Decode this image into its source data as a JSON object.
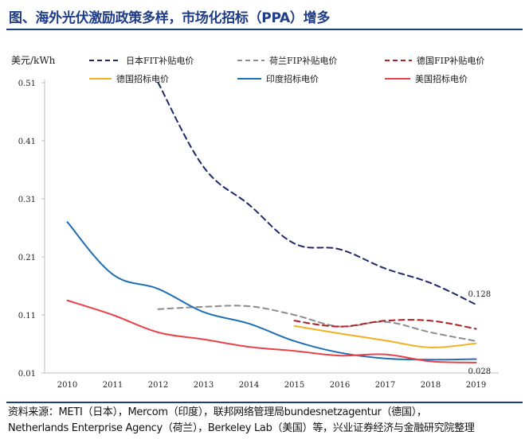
{
  "header": {
    "title": "图、海外光伏激励政策多样，市场化招标（PPA）增多"
  },
  "chart_data": {
    "type": "line",
    "ylabel": "美元/kWh",
    "x": [
      2010,
      2011,
      2012,
      2013,
      2014,
      2015,
      2016,
      2017,
      2018,
      2019
    ],
    "y_ticks": [
      "0.51",
      "0.41",
      "0.31",
      "0.21",
      "0.11",
      "0.01"
    ],
    "ylim": [
      0.01,
      0.51
    ],
    "grid": false,
    "legend_position": "top",
    "series": [
      {
        "name": "日本FIT补贴电价",
        "color": "#1f2a6b",
        "dash": "dashed",
        "points": [
          [
            2012,
            0.51
          ],
          [
            2013,
            0.365
          ],
          [
            2014,
            0.3
          ],
          [
            2015,
            0.233
          ],
          [
            2016,
            0.223
          ],
          [
            2017,
            0.19
          ],
          [
            2018,
            0.165
          ],
          [
            2019,
            0.128
          ]
        ]
      },
      {
        "name": "荷兰FIP补贴电价",
        "color": "#8c8c8c",
        "dash": "dashed",
        "points": [
          [
            2012,
            0.12
          ],
          [
            2013,
            0.124
          ],
          [
            2014,
            0.125
          ],
          [
            2015,
            0.11
          ],
          [
            2016,
            0.09
          ],
          [
            2017,
            0.098
          ],
          [
            2018,
            0.08
          ],
          [
            2019,
            0.065
          ]
        ]
      },
      {
        "name": "德国FIP补贴电价",
        "color": "#b01f24",
        "dash": "dashed",
        "points": [
          [
            2015,
            0.1
          ],
          [
            2016,
            0.09
          ],
          [
            2017,
            0.1
          ],
          [
            2018,
            0.1
          ],
          [
            2019,
            0.086
          ]
        ]
      },
      {
        "name": "德国招标电价",
        "color": "#f2b01e",
        "dash": "solid",
        "points": [
          [
            2015,
            0.091
          ],
          [
            2016,
            0.078
          ],
          [
            2017,
            0.066
          ],
          [
            2018,
            0.054
          ],
          [
            2019,
            0.061
          ]
        ]
      },
      {
        "name": "印度招标电价",
        "color": "#1f6fb5",
        "dash": "solid",
        "points": [
          [
            2010,
            0.27
          ],
          [
            2011,
            0.18
          ],
          [
            2012,
            0.155
          ],
          [
            2013,
            0.115
          ],
          [
            2014,
            0.095
          ],
          [
            2015,
            0.065
          ],
          [
            2016,
            0.045
          ],
          [
            2017,
            0.035
          ],
          [
            2018,
            0.033
          ],
          [
            2019,
            0.034
          ]
        ]
      },
      {
        "name": "美国招标电价",
        "color": "#e8424a",
        "dash": "solid",
        "points": [
          [
            2010,
            0.135
          ],
          [
            2011,
            0.11
          ],
          [
            2012,
            0.08
          ],
          [
            2013,
            0.068
          ],
          [
            2014,
            0.055
          ],
          [
            2015,
            0.048
          ],
          [
            2016,
            0.04
          ],
          [
            2017,
            0.042
          ],
          [
            2018,
            0.03
          ],
          [
            2019,
            0.028
          ]
        ]
      }
    ],
    "annotations": [
      {
        "text": "0.128",
        "x": 2019,
        "y": 0.128
      },
      {
        "text": "0.028",
        "x": 2019,
        "y": 0.028
      }
    ]
  },
  "footer": {
    "source_line1": "资料来源：METI（日本），Mercom（印度），联邦网络管理局bundesnetzagentur（德国），",
    "source_line2": "Netherlands Enterprise Agency（荷兰），Berkeley Lab（美国）等，兴业证券经济与金融研究院整理"
  }
}
